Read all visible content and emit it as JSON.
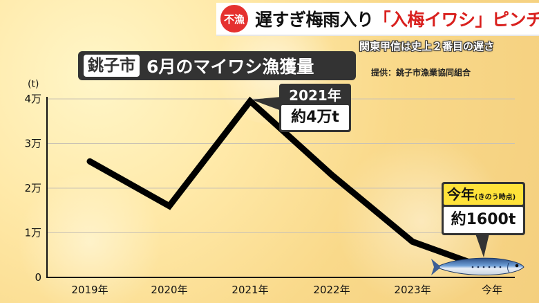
{
  "headline": {
    "tag": "不漁",
    "text_prefix": "遅すぎ梅雨入り",
    "text_highlight": "「入梅イワシ」ピンチ",
    "subheadline": "関東甲信は史上２番目の遅さ"
  },
  "title": {
    "city": "銚子市",
    "text": "6月のマイワシ漁獲量"
  },
  "source": "提供：銚子市漁業協同組合",
  "callouts": {
    "peak_year": "2021年",
    "peak_value": "約4万t",
    "now_label": "今年",
    "now_note": "(きのう時点)",
    "now_value": "約1600t"
  },
  "colors": {
    "line": "#000000",
    "callout_bg": "#333333",
    "highlight_yellow": "#ffe23a",
    "tag_red": "#e5312f"
  },
  "chart_data": {
    "type": "line",
    "title": "6月のマイワシ漁獲量",
    "ylabel": "(t)",
    "categories": [
      "2019年",
      "2020年",
      "2021年",
      "2022年",
      "2023年",
      "今年"
    ],
    "series": [
      {
        "values": [
          26000,
          16000,
          39500,
          23000,
          8000,
          1600
        ]
      }
    ],
    "ylim": [
      0,
      40000
    ],
    "yticks": [
      0,
      10000,
      20000,
      30000,
      40000
    ],
    "ytick_labels": [
      "0",
      "1万",
      "2万",
      "3万",
      "4万"
    ],
    "grid": true
  }
}
